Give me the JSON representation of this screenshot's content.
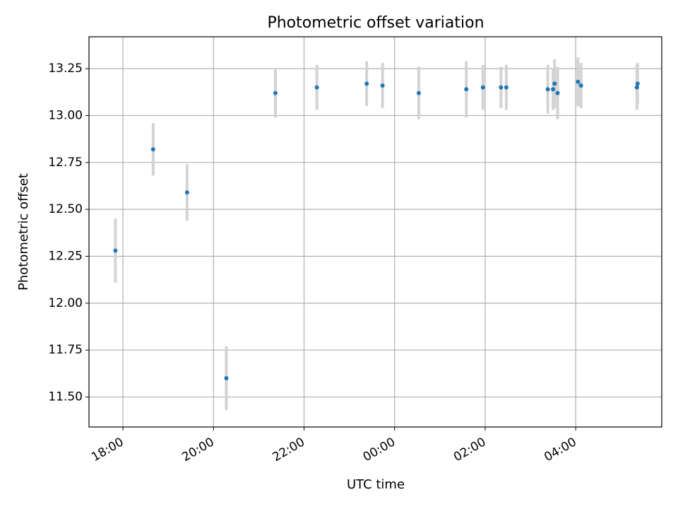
{
  "chart_data": {
    "type": "scatter",
    "title": "Photometric offset variation",
    "xlabel": "UTC time",
    "ylabel": "Photometric offset",
    "x_tick_labels": [
      "18:00",
      "20:00",
      "22:00",
      "00:00",
      "02:00",
      "04:00"
    ],
    "x_ticks_hours": [
      18,
      20,
      22,
      24,
      26,
      28
    ],
    "y_tick_labels": [
      "11.50",
      "11.75",
      "12.00",
      "12.25",
      "12.50",
      "12.75",
      "13.00",
      "13.25"
    ],
    "y_ticks": [
      11.5,
      11.75,
      12.0,
      12.25,
      12.5,
      12.75,
      13.0,
      13.25
    ],
    "xlim_hours": [
      17.25,
      29.9
    ],
    "ylim": [
      11.34,
      13.42
    ],
    "grid": true,
    "marker_color": "#1f77b4",
    "errorbar_color": "#d3d3d3",
    "points": [
      {
        "t": "17:50",
        "y": 12.28,
        "err": 0.17
      },
      {
        "t": "18:40",
        "y": 12.82,
        "err": 0.14
      },
      {
        "t": "19:25",
        "y": 12.59,
        "err": 0.15
      },
      {
        "t": "20:17",
        "y": 11.6,
        "err": 0.17
      },
      {
        "t": "21:22",
        "y": 13.12,
        "err": 0.13
      },
      {
        "t": "22:17",
        "y": 13.15,
        "err": 0.12
      },
      {
        "t": "23:23",
        "y": 13.17,
        "err": 0.12
      },
      {
        "t": "23:44",
        "y": 13.16,
        "err": 0.12
      },
      {
        "t": "00:32",
        "y": 13.12,
        "err": 0.14
      },
      {
        "t": "01:35",
        "y": 13.14,
        "err": 0.15
      },
      {
        "t": "01:57",
        "y": 13.15,
        "err": 0.12
      },
      {
        "t": "02:21",
        "y": 13.15,
        "err": 0.11
      },
      {
        "t": "02:28",
        "y": 13.15,
        "err": 0.12
      },
      {
        "t": "03:23",
        "y": 13.14,
        "err": 0.13
      },
      {
        "t": "03:30",
        "y": 13.14,
        "err": 0.11
      },
      {
        "t": "03:32",
        "y": 13.17,
        "err": 0.13
      },
      {
        "t": "03:36",
        "y": 13.12,
        "err": 0.14
      },
      {
        "t": "04:03",
        "y": 13.18,
        "err": 0.13
      },
      {
        "t": "04:07",
        "y": 13.16,
        "err": 0.12
      },
      {
        "t": "05:21",
        "y": 13.15,
        "err": 0.12
      },
      {
        "t": "05:22",
        "y": 13.17,
        "err": 0.11
      }
    ]
  }
}
